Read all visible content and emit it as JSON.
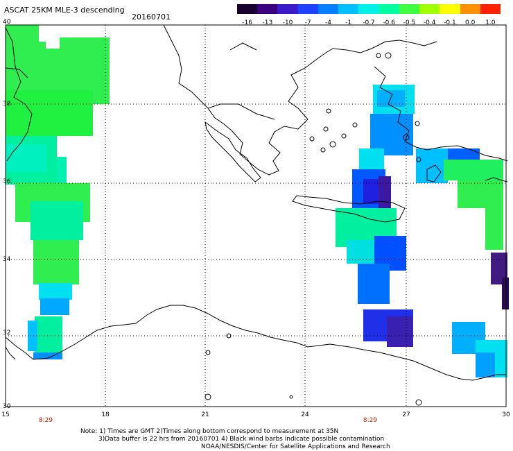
{
  "title": "ASCAT 25KM MLE-3 descending",
  "date": "20160701",
  "colorbar": {
    "labels": [
      "-16",
      "-13",
      "-10",
      "-7",
      "-4",
      "-1",
      "-0.7",
      "-0.6",
      "-0.5",
      "-0.4",
      "-0.1",
      "0.0",
      "1.0"
    ],
    "colors": [
      "#1a0030",
      "#3a0080",
      "#3a1cc8",
      "#2040ff",
      "#0080ff",
      "#00c0ff",
      "#00f0e8",
      "#00ffa0",
      "#40ff40",
      "#a0ff00",
      "#ffff00",
      "#ff9000",
      "#ff2000"
    ]
  },
  "axes": {
    "lon_ticks": [
      "15",
      "18",
      "21",
      "24",
      "27",
      "30"
    ],
    "lat_ticks": [
      "40",
      "38",
      "36",
      "34",
      "32",
      "30"
    ]
  },
  "time_labels": [
    "8:29",
    "8:29"
  ],
  "notes": {
    "line1": "Note: 1) Times are GMT 2)Times along bottom correspond to measurement at 35N",
    "line2": "3)Data buffer is 22 hrs from 20160701 4) Black wind barbs indicate possible contamination",
    "line3": "NOAA/NESDIS/Center for Satellite Applications and Research"
  }
}
